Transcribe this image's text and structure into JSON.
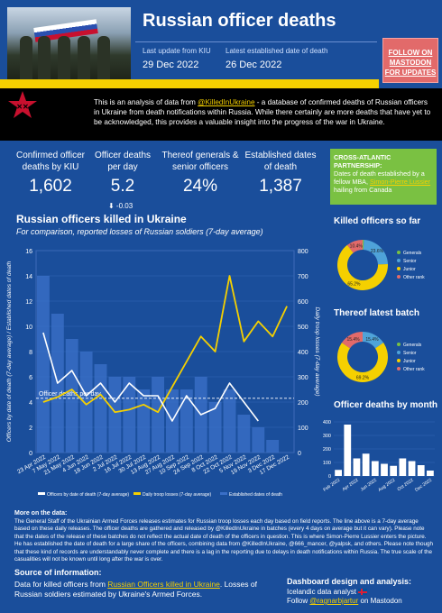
{
  "header": {
    "title": "Russian officer deaths",
    "last_update_label": "Last update from KIU",
    "last_update_value": "29 Dec 2022",
    "established_label": "Latest established date of death",
    "established_value": "26 Dec 2022",
    "follow_button": "FOLLOW ON MASTODON FOR UPDATES"
  },
  "intro": {
    "text_before": "This is an analysis of data from ",
    "link": "@KilledInUkraine",
    "text_after": " - a database of confirmed deaths of Russian officers in Ukraine from death notifications within Russia. While there certainly are more deaths that have yet to be acknowledged, this provides a valuable insight into the progress of the war in Ukraine."
  },
  "stats": [
    {
      "label": "Confirmed officer deaths by KIU",
      "value": "1,602"
    },
    {
      "label": "Officer deaths per day",
      "value": "5.2",
      "sub": "⬇ -0.03"
    },
    {
      "label": "Thereof generals & senior officers",
      "value": "24%"
    },
    {
      "label": "Established dates of death",
      "value": "1,387"
    }
  ],
  "partnership": {
    "heading": "CROSS-ATLANTIC PARTNERSHIP:",
    "text1": "Dates of death established by a fellow MBA, ",
    "link": "Simon-Pierre Lussier",
    "text2": " hailing from Canada"
  },
  "main_chart": {
    "title": "Russian officers killed in Ukraine",
    "subtitle": "For comparison, reported losses of Russian soldiers (7-day average)",
    "left_axis_label": "Officers by date of death (7-day average) / Established dates of death",
    "right_axis_label": "Daily troop losses (7-day average)",
    "annotation": "Officer deaths per day",
    "legend": [
      "Officers by date of death (7-day average)",
      "Daily troop losses (7-day average)",
      "Established dates of death"
    ]
  },
  "side": {
    "pie1_title": "Killed officers so far",
    "pie2_title": "Thereof latest batch",
    "bar_title": "Officer deaths by month",
    "legend": [
      "Generals",
      "Senior",
      "Junior",
      "Other rank"
    ]
  },
  "notes": {
    "heading": "More on the data:",
    "text": "The General Staff of the Ukrainian Armed Forces releases estimates for Russian troop losses each day based on field reports. The line above is a 7-day average based on these daily releases. The officer deaths are gathered and released by @KilledInUkraine in batches (every 4 days on average but it can vary). Please note that the dates of the release of these batches do not reflect the actual date of death of the officers in question. This is where Simon-Pierre Lussier enters the picture. He has established the date of death for a large share of the officers, combining data from @KilledInUkraine, @666_mancer, @yalpsk, and others. Please note though that these kind of records are understandably never complete and there is a lag in the reporting due to delays in death notifications within Russia. The true scale of the casualities will not be known until long after the war is over."
  },
  "source": {
    "heading": "Source of information:",
    "text_before": "Data for killed officers from ",
    "link": "Russian Officers killed in Ukraine",
    "text_after": ". Losses of Russian soldiers estimated by Ukraine's Armed Forces."
  },
  "design": {
    "heading": "Dashboard design and analysis:",
    "line1": "Icelandic data analyst",
    "line2_before": "Follow ",
    "link": "@ragnarbjartur",
    "line2_after": " on Mastodon"
  },
  "colors": {
    "background": "#1a4e9b",
    "accent_yellow": "#f5d000",
    "green": "#7ac142",
    "red": "#e26a6a"
  },
  "chart_data": [
    {
      "type": "line",
      "title": "Russian officers killed in Ukraine",
      "x": [
        "23 Apr 2022",
        "7 May 2022",
        "21 May 2022",
        "4 Jun 2022",
        "18 Jun 2022",
        "2 Jul 2022",
        "16 Jul 2022",
        "30 Jul 2022",
        "13 Aug 2022",
        "27 Aug 2022",
        "10 Sep 2022",
        "24 Sep 2022",
        "8 Oct 2022",
        "22 Oct 2022",
        "5 Nov 2022",
        "19 Nov 2022",
        "3 Dec 2022",
        "17 Dec 2022"
      ],
      "left_ylim": [
        0,
        16
      ],
      "right_ylim": [
        0,
        800
      ],
      "series": [
        {
          "name": "Officers by date of death (7-day average)",
          "axis": "left",
          "values": [
            9.5,
            5.5,
            6.5,
            4.5,
            5.5,
            4.0,
            5.5,
            4.5,
            4.5,
            2.5,
            4.5,
            3.0,
            3.5,
            5.5,
            4.0,
            2.5,
            null,
            null
          ]
        },
        {
          "name": "Daily troop losses (7-day average)",
          "axis": "right",
          "values": [
            200,
            220,
            250,
            190,
            230,
            160,
            170,
            190,
            160,
            260,
            360,
            460,
            400,
            700,
            440,
            520,
            460,
            580
          ]
        },
        {
          "name": "Established dates of death",
          "axis": "left",
          "type": "bar",
          "values": [
            14,
            11,
            9,
            8,
            7,
            6,
            6,
            5,
            6,
            5,
            5,
            6,
            4,
            5,
            3,
            2,
            1,
            0
          ]
        }
      ],
      "annotation_value": 4.3
    },
    {
      "type": "pie",
      "title": "Killed officers so far",
      "labels": [
        "Generals",
        "Senior",
        "Junior",
        "Other rank"
      ],
      "values": [
        0.8,
        23.6,
        65.2,
        10.4
      ]
    },
    {
      "type": "pie",
      "title": "Thereof latest batch",
      "labels": [
        "Generals",
        "Senior",
        "Junior",
        "Other rank"
      ],
      "values": [
        0,
        15.4,
        69.2,
        15.4
      ]
    },
    {
      "type": "bar",
      "title": "Officer deaths by month",
      "categories": [
        "Feb 2022",
        "Mar 2022",
        "Apr 2022",
        "May 2022",
        "Jun 2022",
        "Jul 2022",
        "Aug 2022",
        "Sep 2022",
        "Oct 2022",
        "Nov 2022",
        "Dec 2022"
      ],
      "values": [
        45,
        380,
        130,
        165,
        110,
        90,
        75,
        130,
        110,
        80,
        40
      ],
      "ylim": [
        0,
        400
      ],
      "yticks": [
        0,
        100,
        200,
        300,
        400
      ],
      "xtick_labels": [
        "Feb 2022",
        "Apr 2022",
        "Jun 2022",
        "Aug 2022",
        "Oct 2022",
        "Dec 2022"
      ]
    }
  ]
}
